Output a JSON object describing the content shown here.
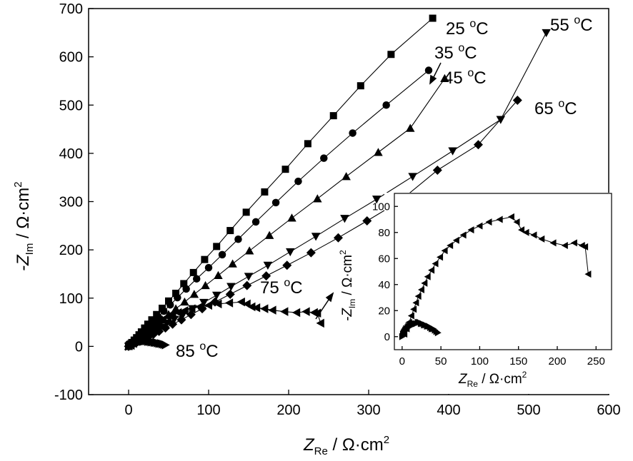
{
  "chart_data": [
    {
      "type": "scatter",
      "title": "",
      "xlabel": "Z_Re / Ω·cm²",
      "xlabel_main": "Z",
      "xlabel_sub": "Re",
      "xlabel_unit": " / Ω·cm",
      "xlabel_sup": "2",
      "ylabel": "-Z_Im / Ω·cm²",
      "ylabel_main": "-Z",
      "ylabel_sub": "Im",
      "ylabel_unit": " / Ω·cm",
      "ylabel_sup": "2",
      "xlim": [
        -50,
        600
      ],
      "ylim": [
        -100,
        700
      ],
      "xticks": [
        0,
        100,
        200,
        300,
        400,
        500,
        600
      ],
      "yticks": [
        -100,
        0,
        100,
        200,
        300,
        400,
        500,
        600,
        700
      ],
      "xtick_labels": [
        "0",
        "100",
        "200",
        "300",
        "400",
        "500",
        "600"
      ],
      "ytick_labels": [
        "-100",
        "0",
        "100",
        "200",
        "300",
        "400",
        "500",
        "600",
        "700"
      ],
      "grid": false,
      "series": [
        {
          "name": "25 °C",
          "label_text": "25 ",
          "label_sup": "o",
          "label_unit": "C",
          "marker": "square",
          "x": [
            0,
            2,
            4,
            7,
            10,
            13,
            16,
            20,
            24,
            29,
            35,
            42,
            50,
            59,
            69,
            81,
            95,
            110,
            127,
            147,
            170,
            196,
            224,
            256,
            290,
            328,
            380
          ],
          "y": [
            0,
            4,
            8,
            13,
            18,
            24,
            30,
            38,
            46,
            55,
            66,
            79,
            94,
            110,
            130,
            153,
            180,
            207,
            240,
            278,
            320,
            367,
            420,
            478,
            540,
            605,
            680
          ]
        },
        {
          "name": "35 °C",
          "label_text": "35 ",
          "label_sup": "o",
          "label_unit": "C",
          "marker": "circle",
          "x": [
            0,
            2,
            4,
            7,
            10,
            13,
            17,
            21,
            26,
            31,
            37,
            44,
            52,
            61,
            72,
            85,
            100,
            117,
            137,
            159,
            184,
            212,
            244,
            280,
            322,
            375
          ],
          "y": [
            0,
            3,
            7,
            11,
            16,
            21,
            27,
            34,
            42,
            51,
            61,
            73,
            86,
            101,
            119,
            140,
            163,
            190,
            222,
            258,
            298,
            342,
            390,
            442,
            500,
            572
          ]
        },
        {
          "name": "45 °C",
          "label_text": "45 ",
          "label_sup": "o",
          "label_unit": "C",
          "marker": "triangle-up",
          "x": [
            0,
            2,
            5,
            8,
            11,
            15,
            19,
            24,
            29,
            35,
            42,
            50,
            59,
            70,
            82,
            96,
            112,
            130,
            151,
            176,
            204,
            236,
            272,
            312,
            352,
            395
          ],
          "y": [
            0,
            3,
            6,
            10,
            14,
            19,
            25,
            31,
            38,
            46,
            55,
            66,
            78,
            92,
            108,
            126,
            147,
            171,
            198,
            230,
            266,
            306,
            352,
            402,
            452,
            555
          ]
        },
        {
          "name": "55 °C",
          "label_text": "55 ",
          "label_sup": "o",
          "label_unit": "C",
          "marker": "triangle-down",
          "x": [
            0,
            3,
            6,
            9,
            13,
            17,
            22,
            27,
            33,
            40,
            48,
            57,
            68,
            80,
            94,
            110,
            128,
            150,
            174,
            202,
            234,
            270,
            310,
            355,
            405,
            465,
            522
          ],
          "y": [
            0,
            3,
            6,
            9,
            13,
            17,
            22,
            27,
            33,
            40,
            48,
            56,
            66,
            78,
            91,
            106,
            124,
            145,
            168,
            196,
            228,
            265,
            305,
            352,
            405,
            470,
            650
          ]
        },
        {
          "name": "65 °C",
          "label_text": "65 ",
          "label_sup": "o",
          "label_unit": "C",
          "marker": "diamond",
          "x": [
            0,
            3,
            6,
            10,
            14,
            19,
            25,
            31,
            38,
            46,
            55,
            66,
            78,
            92,
            108,
            127,
            148,
            172,
            198,
            228,
            262,
            298,
            338,
            386,
            437,
            486
          ],
          "y": [
            0,
            2,
            5,
            8,
            12,
            16,
            20,
            25,
            31,
            38,
            46,
            55,
            66,
            78,
            92,
            108,
            126,
            146,
            168,
            194,
            225,
            260,
            300,
            365,
            418,
            510
          ]
        },
        {
          "name": "75 °C",
          "label_text": "75 ",
          "label_sup": "o",
          "label_unit": "C",
          "marker": "triangle-left",
          "x": [
            3,
            6,
            9,
            12,
            15,
            18,
            21,
            25,
            29,
            33,
            38,
            43,
            49,
            55,
            62,
            70,
            79,
            89,
            100,
            112,
            126,
            141,
            148,
            154,
            160,
            170,
            180,
            195,
            210,
            222,
            232,
            236,
            240
          ],
          "y": [
            2,
            6,
            11,
            16,
            21,
            26,
            31,
            36,
            41,
            46,
            51,
            56,
            61,
            66,
            70,
            74,
            78,
            82,
            85,
            88,
            90,
            92,
            88,
            82,
            80,
            78,
            75,
            72,
            70,
            72,
            70,
            69,
            48
          ]
        },
        {
          "name": "85 °C",
          "label_text": "85 ",
          "label_sup": "o",
          "label_unit": "C",
          "marker": "triangle-right",
          "x": [
            0,
            1,
            2,
            3,
            4,
            5,
            6,
            7,
            8,
            10,
            12,
            14,
            16,
            18,
            20,
            22,
            24,
            26,
            28,
            30,
            32,
            34,
            36,
            38,
            40,
            42,
            44,
            46
          ],
          "y": [
            0,
            2,
            3,
            4,
            5,
            6,
            6,
            7,
            8,
            8,
            9,
            9,
            10,
            10,
            11,
            11,
            10,
            10,
            9,
            9,
            8,
            8,
            7,
            6,
            6,
            5,
            4,
            3
          ]
        }
      ]
    },
    {
      "type": "scatter",
      "title": "",
      "xlabel": "Z_Re / Ω·cm²",
      "xlabel_main": "Z",
      "xlabel_sub": "Re",
      "xlabel_unit": " / Ω·cm",
      "xlabel_sup": "2",
      "ylabel": "-Z_Im / Ω·cm²",
      "ylabel_main": "-Z",
      "ylabel_sub": "Im",
      "ylabel_unit": " / Ω·cm",
      "ylabel_sup": "2",
      "xlim": [
        -10,
        270
      ],
      "ylim": [
        -10,
        110
      ],
      "xticks": [
        0,
        50,
        100,
        150,
        200,
        250
      ],
      "yticks": [
        0,
        20,
        40,
        60,
        80,
        100
      ],
      "xtick_labels": [
        "0",
        "50",
        "100",
        "150",
        "200",
        "250"
      ],
      "ytick_labels": [
        "0",
        "20",
        "40",
        "60",
        "80",
        "100"
      ],
      "grid": false,
      "series": [
        {
          "marker": "triangle-left",
          "x": [
            3,
            6,
            9,
            12,
            15,
            18,
            21,
            25,
            29,
            33,
            38,
            43,
            49,
            55,
            62,
            70,
            79,
            89,
            100,
            112,
            126,
            141,
            148,
            154,
            160,
            170,
            180,
            195,
            210,
            222,
            232,
            236,
            240
          ],
          "y": [
            2,
            6,
            11,
            16,
            21,
            26,
            31,
            36,
            41,
            46,
            51,
            56,
            61,
            66,
            70,
            74,
            78,
            82,
            85,
            88,
            90,
            92,
            88,
            82,
            80,
            78,
            75,
            72,
            70,
            72,
            70,
            69,
            48
          ]
        },
        {
          "marker": "triangle-right",
          "x": [
            0,
            1,
            2,
            3,
            4,
            5,
            6,
            7,
            8,
            10,
            12,
            14,
            16,
            18,
            20,
            22,
            24,
            26,
            28,
            30,
            32,
            34,
            36,
            38,
            40,
            42,
            44,
            46
          ],
          "y": [
            0,
            2,
            3,
            4,
            5,
            6,
            6,
            7,
            8,
            8,
            9,
            9,
            10,
            10,
            11,
            11,
            10,
            10,
            9,
            9,
            8,
            8,
            7,
            6,
            6,
            5,
            4,
            3
          ]
        }
      ]
    }
  ]
}
